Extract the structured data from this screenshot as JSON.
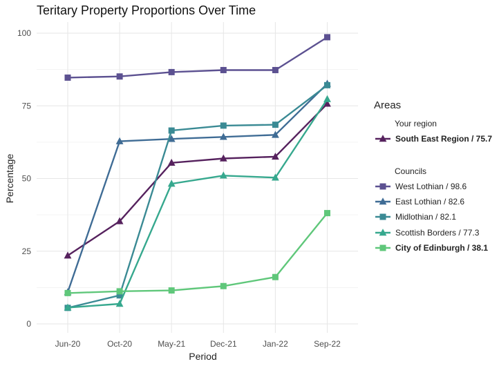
{
  "chart_data": {
    "type": "line",
    "title": "Teritary Property Proportions Over Time",
    "xlabel": "Period",
    "ylabel": "Percentage",
    "ylim": [
      0,
      100
    ],
    "yticks": [
      "0",
      "25",
      "50",
      "75",
      "100"
    ],
    "ytick_values": [
      0,
      25,
      50,
      75,
      100
    ],
    "categories": [
      "Jun-20",
      "Oct-20",
      "May-21",
      "Dec-21",
      "Jan-22",
      "Sep-22"
    ],
    "grid": true,
    "legend_placement": "right",
    "legend": {
      "title": "Areas",
      "region_heading": "Your region",
      "councils_heading": "Councils"
    },
    "series": [
      {
        "key": "south-east-region",
        "name": "South East Region / 75.7",
        "group": "region",
        "color": "#56225e",
        "marker": "triangle",
        "bold": true,
        "values": [
          23.5,
          35.3,
          55.4,
          56.9,
          57.5,
          75.7
        ]
      },
      {
        "key": "west-lothian",
        "name": "West Lothian / 98.6",
        "group": "councils",
        "color": "#5c5191",
        "marker": "square",
        "bold": false,
        "values": [
          84.7,
          85.1,
          86.6,
          87.3,
          87.3,
          98.6
        ]
      },
      {
        "key": "east-lothian",
        "name": "East Lothian / 82.6",
        "group": "councils",
        "color": "#3f6c95",
        "marker": "triangle",
        "bold": false,
        "values": [
          10.9,
          62.8,
          63.6,
          64.3,
          65.0,
          82.6
        ]
      },
      {
        "key": "midlothian",
        "name": "Midlothian / 82.1",
        "group": "councils",
        "color": "#3a8a94",
        "marker": "square",
        "bold": false,
        "values": [
          5.5,
          9.8,
          66.5,
          68.2,
          68.5,
          82.1
        ]
      },
      {
        "key": "scottish-borders",
        "name": "Scottish Borders / 77.3",
        "group": "councils",
        "color": "#36a88e",
        "marker": "triangle",
        "bold": false,
        "values": [
          5.6,
          6.9,
          48.2,
          51.0,
          50.3,
          77.3
        ]
      },
      {
        "key": "city-of-edinburgh",
        "name": "City of Edinburgh / 38.1",
        "group": "councils",
        "color": "#5fc77a",
        "marker": "square",
        "bold": true,
        "values": [
          10.6,
          11.2,
          11.5,
          13.0,
          16.1,
          38.1
        ]
      }
    ]
  }
}
